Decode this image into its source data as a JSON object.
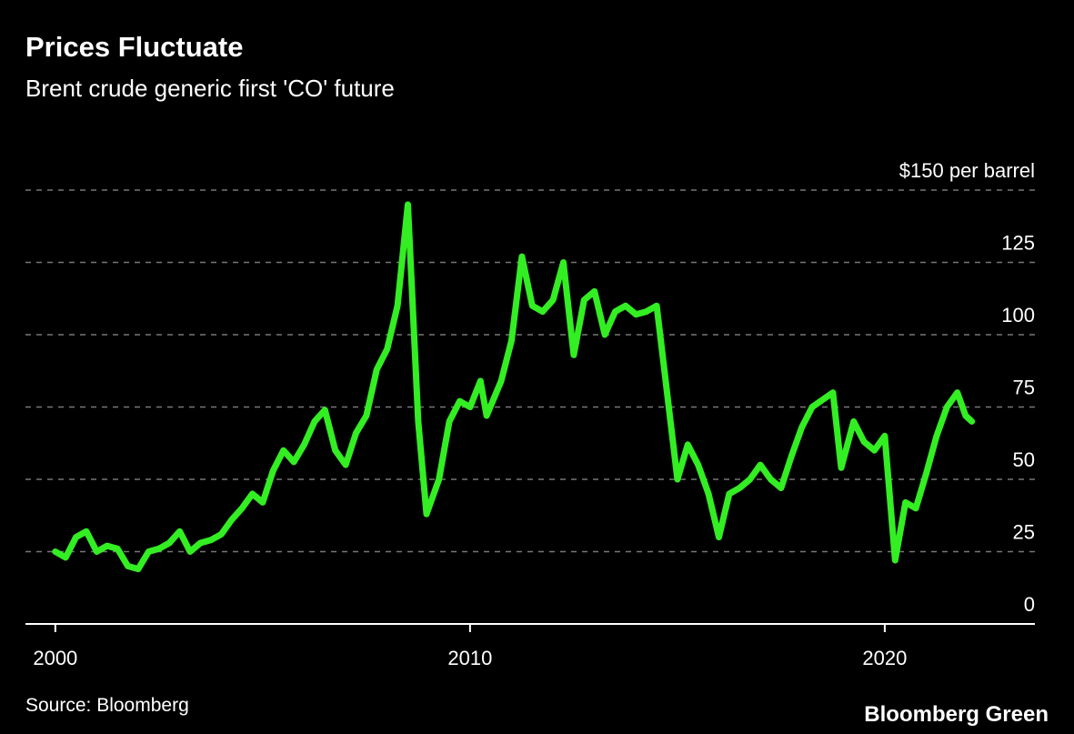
{
  "chart_data": {
    "type": "line",
    "title": "Prices Fluctuate",
    "subtitle": "Brent crude generic first 'CO' future",
    "source": "Source: Bloomberg",
    "brand": "Bloomberg Green",
    "color": "#33ee22",
    "grid": true,
    "xlim": [
      1999.28,
      2023.62
    ],
    "xticks": [
      2000,
      2010,
      2020
    ],
    "ylim": [
      0,
      150
    ],
    "yticks": [
      0,
      25,
      50,
      75,
      100,
      125,
      {
        "value": 150,
        "label": "$150 per barrel"
      }
    ],
    "x": [
      2000.0,
      2000.25,
      2000.5,
      2000.75,
      2001.0,
      2001.25,
      2001.5,
      2001.75,
      2002.0,
      2002.25,
      2002.5,
      2002.75,
      2003.0,
      2003.25,
      2003.5,
      2003.75,
      2004.0,
      2004.25,
      2004.5,
      2004.75,
      2005.0,
      2005.25,
      2005.5,
      2005.75,
      2006.0,
      2006.25,
      2006.5,
      2006.75,
      2007.0,
      2007.25,
      2007.5,
      2007.75,
      2008.0,
      2008.25,
      2008.5,
      2008.75,
      2008.95,
      2009.25,
      2009.5,
      2009.75,
      2010.0,
      2010.25,
      2010.4,
      2010.75,
      2011.0,
      2011.25,
      2011.5,
      2011.75,
      2012.0,
      2012.25,
      2012.5,
      2012.75,
      2013.0,
      2013.25,
      2013.5,
      2013.75,
      2014.0,
      2014.25,
      2014.5,
      2014.75,
      2015.0,
      2015.25,
      2015.5,
      2015.75,
      2016.0,
      2016.25,
      2016.5,
      2016.75,
      2017.0,
      2017.25,
      2017.5,
      2017.75,
      2018.0,
      2018.25,
      2018.75,
      2018.95,
      2019.25,
      2019.5,
      2019.75,
      2020.0,
      2020.25,
      2020.5,
      2020.75,
      2021.0,
      2021.25,
      2021.5,
      2021.75,
      2021.95,
      2022.1
    ],
    "values": [
      25,
      23,
      30,
      32,
      25,
      27,
      26,
      20,
      19,
      25,
      26,
      28,
      32,
      25,
      28,
      29,
      31,
      36,
      40,
      45,
      42,
      53,
      60,
      56,
      62,
      70,
      74,
      60,
      55,
      66,
      72,
      88,
      95,
      110,
      145,
      70,
      38,
      50,
      70,
      77,
      75,
      84,
      72,
      84,
      98,
      127,
      110,
      108,
      112,
      125,
      93,
      112,
      115,
      100,
      108,
      110,
      107,
      108,
      110,
      80,
      50,
      62,
      55,
      45,
      30,
      45,
      47,
      50,
      55,
      50,
      47,
      58,
      68,
      75,
      80,
      54,
      70,
      63,
      60,
      65,
      22,
      42,
      40,
      52,
      65,
      75,
      80,
      72,
      70
    ]
  }
}
